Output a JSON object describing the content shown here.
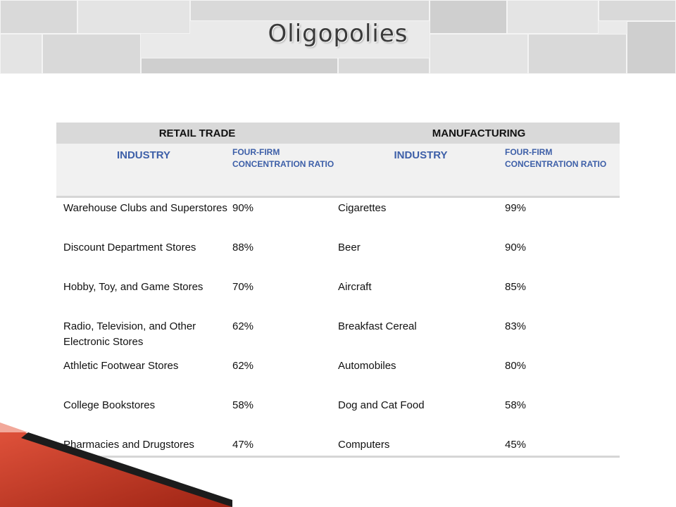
{
  "slide": {
    "title": "Oligopolies"
  },
  "table": {
    "groups": [
      "RETAIL TRADE",
      "MANUFACTURING"
    ],
    "subheaders": {
      "industry": "INDUSTRY",
      "ratio": "FOUR-FIRM CONCENTRATION RATIO"
    },
    "rows": [
      {
        "retail": "Warehouse Clubs and Superstores",
        "retail_pct": "90%",
        "mfg": "Cigarettes",
        "mfg_pct": "99%"
      },
      {
        "retail": "Discount Department Stores",
        "retail_pct": "88%",
        "mfg": "Beer",
        "mfg_pct": "90%"
      },
      {
        "retail": "Hobby, Toy, and Game Stores",
        "retail_pct": "70%",
        "mfg": "Aircraft",
        "mfg_pct": "85%"
      },
      {
        "retail": "Radio, Television, and Other Electronic Stores",
        "retail_pct": "62%",
        "mfg": "Breakfast Cereal",
        "mfg_pct": "83%"
      },
      {
        "retail": "Athletic Footwear Stores",
        "retail_pct": "62%",
        "mfg": "Automobiles",
        "mfg_pct": "80%"
      },
      {
        "retail": "College Bookstores",
        "retail_pct": "58%",
        "mfg": "Dog and Cat Food",
        "mfg_pct": "58%"
      },
      {
        "retail": "Pharmacies and Drugstores",
        "retail_pct": "47%",
        "mfg": "Computers",
        "mfg_pct": "45%"
      }
    ]
  },
  "colors": {
    "subheader_text": "#3d5fa8",
    "group_header_bg": "#d9d9d9",
    "accent_red": "#c0311e"
  }
}
